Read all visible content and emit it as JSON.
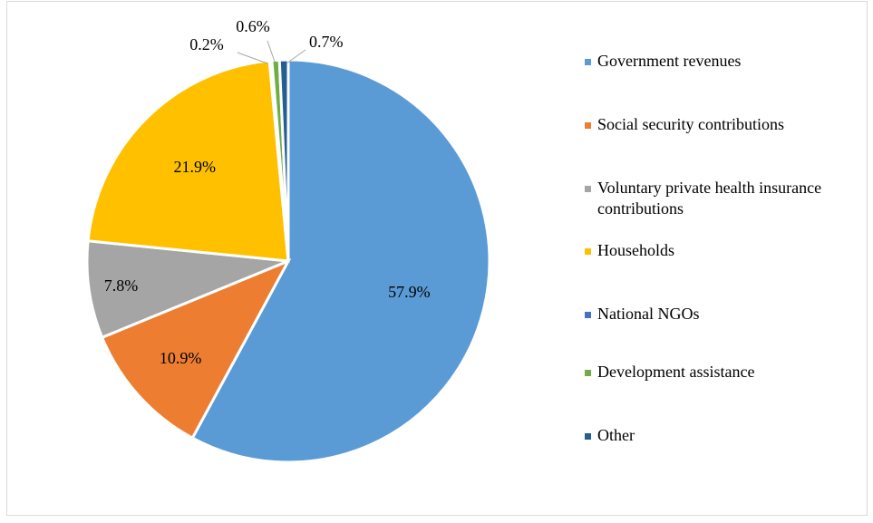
{
  "chart_data": {
    "type": "pie",
    "title": "",
    "slices": [
      {
        "label": "Government revenues",
        "value": 57.9,
        "display": "57.9%",
        "color": "#5B9BD5"
      },
      {
        "label": "Social security contributions",
        "value": 10.9,
        "display": "10.9%",
        "color": "#ED7D31"
      },
      {
        "label": "Voluntary private health insurance contributions",
        "value": 7.8,
        "display": "7.8%",
        "color": "#A5A5A5"
      },
      {
        "label": "Households",
        "value": 21.9,
        "display": "21.9%",
        "color": "#FFC000"
      },
      {
        "label": "National NGOs",
        "value": 0.2,
        "display": "0.2%",
        "color": "#4472C4"
      },
      {
        "label": "Development assistance",
        "value": 0.6,
        "display": "0.6%",
        "color": "#70AD47"
      },
      {
        "label": "Other",
        "value": 0.7,
        "display": "0.7%",
        "color": "#255E91"
      }
    ],
    "legend_position": "right"
  }
}
